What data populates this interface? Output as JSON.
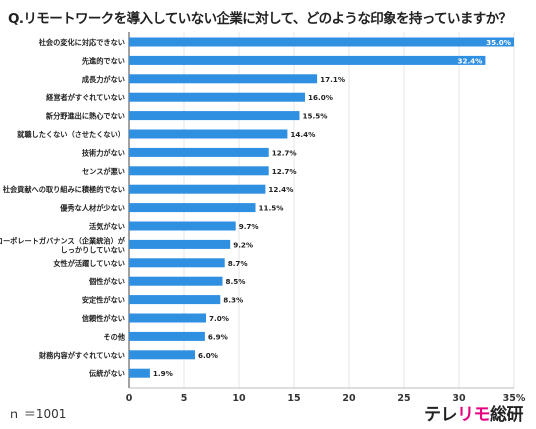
{
  "title": "Q.リモートワークを導入していない企業に対して、どのような印象を持っていますか？",
  "note": "ｎ ＝1001",
  "brand": {
    "part1": "テレ",
    "part2": "リモ",
    "part3": "総研"
  },
  "colors": {
    "bar": "#2f8fe0",
    "accent": "#e4007f",
    "grid": "#e6e6e6",
    "axis": "#444444"
  },
  "chart_data": {
    "type": "bar",
    "orientation": "horizontal",
    "categories": [
      "社会の変化に対応できない",
      "先進的でない",
      "成長力がない",
      "経営者がすぐれていない",
      "新分野進出に熱心でない",
      "就職したくない（させたくない）",
      "技術力がない",
      "センスが悪い",
      "社会貢献への取り組みに積極的でない",
      "優秀な人材が少ない",
      "活気がない",
      "コーポレートガバナンス（企業統治）がしっかりしていない",
      "女性が活躍していない",
      "個性がない",
      "安定性がない",
      "信頼性がない",
      "その他",
      "財務内容がすぐれていない",
      "伝統がない"
    ],
    "values": [
      35.0,
      32.4,
      17.1,
      16.0,
      15.5,
      14.4,
      12.7,
      12.7,
      12.4,
      11.5,
      9.7,
      9.2,
      8.7,
      8.5,
      8.3,
      7.0,
      6.9,
      6.0,
      1.9
    ],
    "value_labels": [
      "35.0%",
      "32.4%",
      "17.1%",
      "16.0%",
      "15.5%",
      "14.4%",
      "12.7%",
      "12.7%",
      "12.4%",
      "11.5%",
      "9.7%",
      "9.2%",
      "8.7%",
      "8.5%",
      "8.3%",
      "7.0%",
      "6.9%",
      "6.0%",
      "1.9%"
    ],
    "xlim": [
      0,
      35
    ],
    "xticks": [
      "0",
      "5",
      "10",
      "15",
      "20",
      "25",
      "30",
      "35%"
    ],
    "grid": true,
    "legend": "none"
  }
}
